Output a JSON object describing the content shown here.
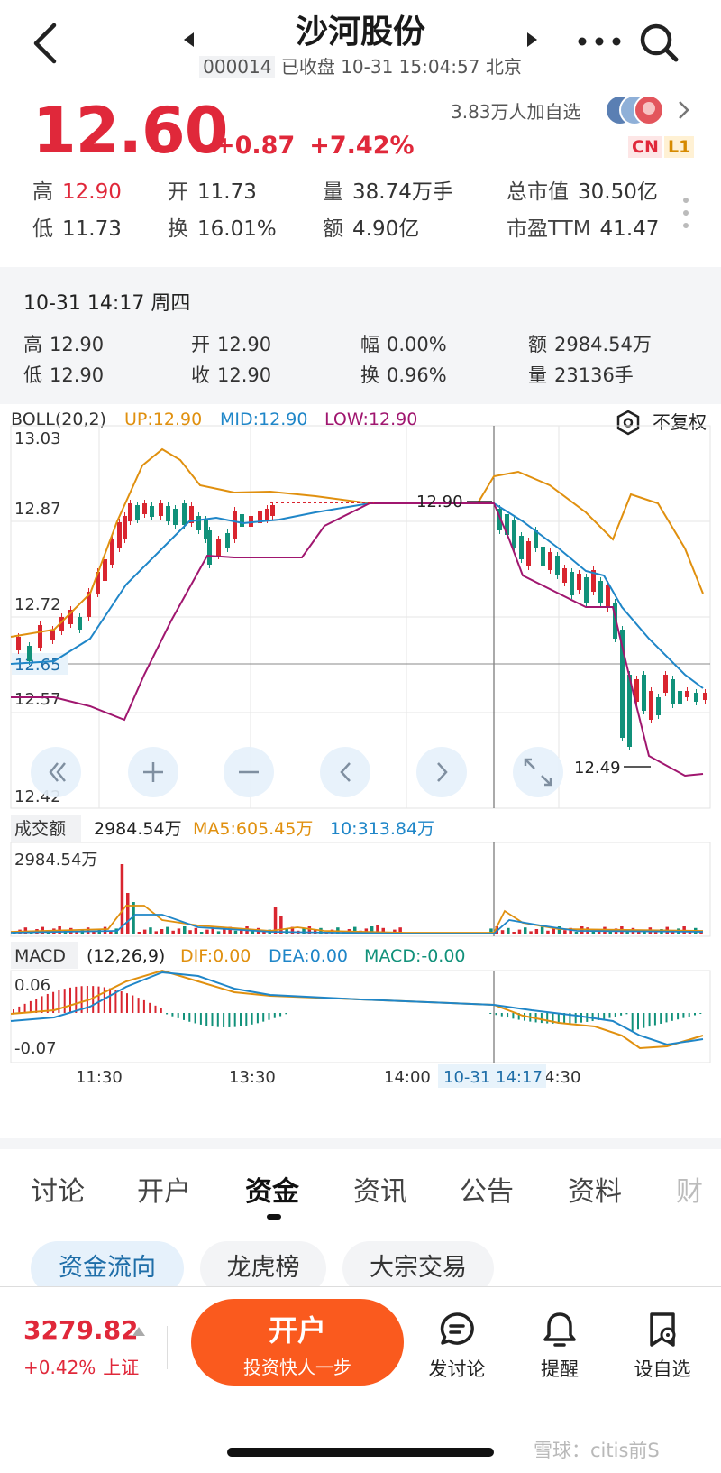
{
  "header": {
    "title": "沙河股份",
    "code": "000014",
    "status": "已收盘 10-31 15:04:57 北京"
  },
  "quote": {
    "price": "12.60",
    "change": "+0.87",
    "change_pct": "+7.42%",
    "followers": "3.83万人加自选",
    "badges": [
      "CN",
      "L1"
    ],
    "stats": [
      {
        "label": "高",
        "value": "12.90",
        "highlight": true
      },
      {
        "label": "开",
        "value": "11.73"
      },
      {
        "label": "量",
        "value": "38.74万手"
      },
      {
        "label": "总市值",
        "value": "30.50亿"
      },
      {
        "label": "低",
        "value": "11.73"
      },
      {
        "label": "换",
        "value": "16.01%"
      },
      {
        "label": "额",
        "value": "4.90亿"
      },
      {
        "label": "市盈TTM",
        "value": "41.47"
      }
    ],
    "colors": {
      "up": "#e0283a"
    }
  },
  "snapshot": {
    "datetime": "10-31 14:17 周四",
    "stats": [
      {
        "label": "高",
        "value": "12.90"
      },
      {
        "label": "开",
        "value": "12.90"
      },
      {
        "label": "幅",
        "value": "0.00%"
      },
      {
        "label": "额",
        "value": "2984.54万"
      },
      {
        "label": "低",
        "value": "12.90"
      },
      {
        "label": "收",
        "value": "12.90"
      },
      {
        "label": "换",
        "value": "0.96%"
      },
      {
        "label": "量",
        "value": "23136手"
      }
    ]
  },
  "chart": {
    "boll_label": "BOLL(20,2)",
    "boll_up": "UP:12.90",
    "boll_mid": "MID:12.90",
    "boll_low": "LOW:12.90",
    "adjust": "不复权",
    "price_ticks": [
      "13.03",
      "12.87",
      "12.72",
      "12.57",
      "12.42"
    ],
    "crosshair_price": "12.65",
    "max_marker": "12.90",
    "min_marker": "12.49",
    "vol_label": "成交额",
    "vol_value": "2984.54万",
    "vol_ma5": "MA5:605.45万",
    "vol_ma10": "10:313.84万",
    "vol_max_tick": "2984.54万",
    "macd_label": "MACD",
    "macd_params": "(12,26,9)",
    "macd_dif": "DIF:0.00",
    "macd_dea": "DEA:0.00",
    "macd_val": "MACD:-0.00",
    "macd_ticks": [
      "0.06",
      "-0.07"
    ],
    "time_ticks": [
      "11:30",
      "13:30",
      "14:00",
      "4:30"
    ],
    "crosshair_time": "10-31 14:17",
    "colors": {
      "upper": "#e0900f",
      "mid": "#1f86c8",
      "lower": "#a0166f",
      "up": "#d9252f",
      "down": "#11917a"
    }
  },
  "tabs": [
    "讨论",
    "开户",
    "资金",
    "资讯",
    "公告",
    "资料",
    "财"
  ],
  "active_tab": "资金",
  "subtabs": [
    "资金流向",
    "龙虎榜",
    "大宗交易"
  ],
  "bottom": {
    "index_value": "3279.82",
    "index_change": "+0.42%",
    "index_name": "上证",
    "open_title": "开户",
    "open_sub": "投资快人一步",
    "tools": [
      "发讨论",
      "提醒",
      "设自选"
    ]
  },
  "watermark": "雪球：citis前S"
}
